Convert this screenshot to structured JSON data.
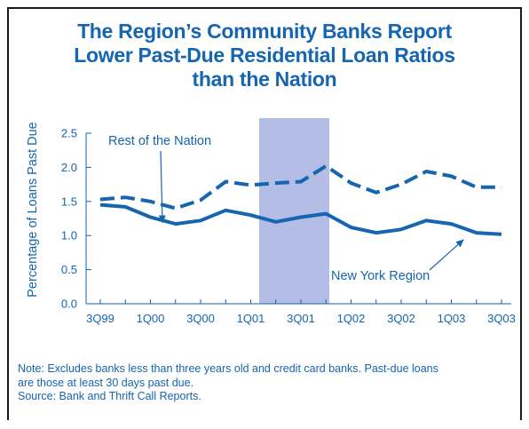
{
  "colors": {
    "accent": "#1565b0",
    "series": "#1565b0",
    "recession_shade": "#b3bde6",
    "frame": "#1a1a1a"
  },
  "title": {
    "line1": "The Region’s Community Banks Report",
    "line2": "Lower Past-Due Residential Loan Ratios",
    "line3": "than the Nation"
  },
  "note": {
    "line1": "Note: Excludes banks less than three years old and credit card banks. Past-due loans",
    "line2": "are those at least 30 days past due.",
    "line3": "Source: Bank and Thrift Call Reports."
  },
  "chart_data": {
    "type": "line",
    "title": "The Region’s Community Banks Report Lower Past-Due Residential Loan Ratios than the Nation",
    "xlabel": "",
    "ylabel": "Percentage of Loans Past Due",
    "ylim": [
      0,
      2.5
    ],
    "yticks": [
      0.0,
      0.5,
      1.0,
      1.5,
      2.0,
      2.5
    ],
    "ytick_labels": [
      "0.0",
      "0.5",
      "1.0",
      "1.5",
      "2.0",
      "2.5"
    ],
    "x": [
      "3Q99",
      "4Q99",
      "1Q00",
      "2Q00",
      "3Q00",
      "4Q00",
      "1Q01",
      "2Q01",
      "3Q01",
      "4Q01",
      "1Q02",
      "2Q02",
      "3Q02",
      "4Q02",
      "1Q03",
      "2Q03",
      "3Q03"
    ],
    "xtick_labels": [
      "3Q99",
      "1Q00",
      "3Q00",
      "1Q01",
      "3Q01",
      "1Q02",
      "3Q02",
      "1Q03",
      "3Q03"
    ],
    "xtick_indices": [
      0,
      2,
      4,
      6,
      8,
      10,
      12,
      14,
      16
    ],
    "grid": false,
    "legend": "none",
    "shaded_region": {
      "from": "1Q01",
      "to": "4Q01"
    },
    "series": [
      {
        "name": "Rest of the Nation",
        "style": "dashed",
        "values": [
          1.53,
          1.56,
          1.5,
          1.4,
          1.52,
          1.79,
          1.74,
          1.77,
          1.79,
          2.02,
          1.77,
          1.63,
          1.75,
          1.94,
          1.87,
          1.71,
          1.71
        ]
      },
      {
        "name": "New York Region",
        "style": "solid",
        "values": [
          1.45,
          1.42,
          1.27,
          1.17,
          1.22,
          1.37,
          1.3,
          1.2,
          1.27,
          1.32,
          1.12,
          1.04,
          1.09,
          1.22,
          1.17,
          1.04,
          1.02
        ]
      }
    ],
    "annotations": [
      {
        "text": "Rest of the Nation",
        "series": "Rest of the Nation",
        "point": "2Q00"
      },
      {
        "text": "New York Region",
        "series": "New York Region",
        "point": "2Q03"
      }
    ]
  }
}
